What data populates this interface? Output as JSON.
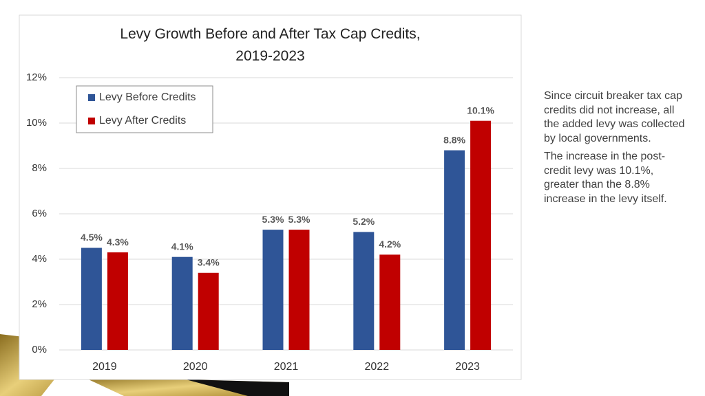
{
  "chart_data": {
    "type": "bar",
    "title": "Levy Growth Before and After Tax Cap Credits, 2019-2023",
    "categories": [
      "2019",
      "2020",
      "2021",
      "2022",
      "2023"
    ],
    "series": [
      {
        "name": "Levy Before Credits",
        "color": "#2f5597",
        "values": [
          4.5,
          4.1,
          5.3,
          5.2,
          8.8
        ],
        "value_labels": [
          "4.5%",
          "4.1%",
          "5.3%",
          "5.2%",
          "8.8%"
        ]
      },
      {
        "name": "Levy After Credits",
        "color": "#c00000",
        "values": [
          4.3,
          3.4,
          5.3,
          4.2,
          10.1
        ],
        "value_labels": [
          "4.3%",
          "3.4%",
          "5.3%",
          "4.2%",
          "10.1%"
        ]
      }
    ],
    "ylim": [
      0,
      12
    ],
    "yticks": [
      {
        "value": 0,
        "label": "0%"
      },
      {
        "value": 2,
        "label": "2%"
      },
      {
        "value": 4,
        "label": "4%"
      },
      {
        "value": 6,
        "label": "6%"
      },
      {
        "value": 8,
        "label": "8%"
      },
      {
        "value": 10,
        "label": "10%"
      },
      {
        "value": 12,
        "label": "12%"
      }
    ],
    "grid": true,
    "legend": "upper-left"
  },
  "side_text": {
    "paragraphs": [
      "Since circuit breaker tax cap credits did not increase, all the added levy was collected by local governments.",
      "The increase in the post-credit levy was 10.1%, greater than the 8.8% increase in the levy itself."
    ]
  }
}
